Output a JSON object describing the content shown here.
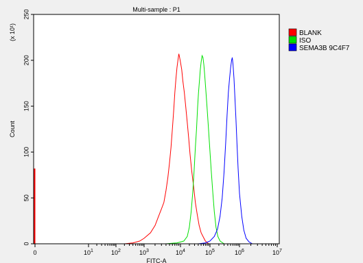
{
  "chart_data": {
    "type": "line",
    "title": "Multi-sample : P1",
    "xlabel": "FITC-A",
    "ylabel": "Count",
    "y_multiplier_label": "(x 10¹)",
    "xscale": "biexponential-log",
    "ylim": [
      0,
      250
    ],
    "yticks": [
      0,
      50,
      100,
      150,
      200,
      250
    ],
    "xticks": [
      {
        "value": 0,
        "base": "0",
        "exp": ""
      },
      {
        "value": 10,
        "base": "10",
        "exp": "1"
      },
      {
        "value": 100,
        "base": "10",
        "exp": "2"
      },
      {
        "value": 1000,
        "base": "10",
        "exp": "3"
      },
      {
        "value": 10000,
        "base": "10",
        "exp": "4"
      },
      {
        "value": 100000,
        "base": "10",
        "exp": "5"
      },
      {
        "value": 1000000,
        "base": "10",
        "exp": "6"
      },
      {
        "value": 10000000,
        "base": "10",
        "exp": "7"
      }
    ],
    "grid": false,
    "legend_position": "right",
    "series": [
      {
        "name": "BLANK",
        "color": "#ff0000",
        "points": [
          [
            200,
            0
          ],
          [
            400,
            1
          ],
          [
            700,
            3
          ],
          [
            1000,
            6
          ],
          [
            1500,
            12
          ],
          [
            2000,
            20
          ],
          [
            2500,
            30
          ],
          [
            3000,
            38
          ],
          [
            3500,
            45
          ],
          [
            4000,
            58
          ],
          [
            4500,
            72
          ],
          [
            5000,
            88
          ],
          [
            5500,
            105
          ],
          [
            6000,
            125
          ],
          [
            6500,
            145
          ],
          [
            7000,
            165
          ],
          [
            7500,
            180
          ],
          [
            8000,
            192
          ],
          [
            8500,
            200
          ],
          [
            9000,
            207
          ],
          [
            9500,
            203
          ],
          [
            10000,
            198
          ],
          [
            11000,
            190
          ],
          [
            12000,
            178
          ],
          [
            13500,
            165
          ],
          [
            15000,
            150
          ],
          [
            17000,
            132
          ],
          [
            19000,
            115
          ],
          [
            21000,
            98
          ],
          [
            24000,
            80
          ],
          [
            28000,
            62
          ],
          [
            32000,
            45
          ],
          [
            37000,
            32
          ],
          [
            43000,
            20
          ],
          [
            50000,
            12
          ],
          [
            60000,
            7
          ],
          [
            70000,
            3
          ],
          [
            90000,
            0
          ]
        ]
      },
      {
        "name": "ISO",
        "color": "#00e000",
        "points": [
          [
            4000,
            0
          ],
          [
            8000,
            1
          ],
          [
            13000,
            3
          ],
          [
            17000,
            8
          ],
          [
            20000,
            18
          ],
          [
            23000,
            35
          ],
          [
            26000,
            55
          ],
          [
            29000,
            80
          ],
          [
            32000,
            105
          ],
          [
            35000,
            125
          ],
          [
            38000,
            148
          ],
          [
            41000,
            165
          ],
          [
            44000,
            178
          ],
          [
            47000,
            190
          ],
          [
            50000,
            198
          ],
          [
            54000,
            205
          ],
          [
            58000,
            203
          ],
          [
            62000,
            195
          ],
          [
            66000,
            185
          ],
          [
            72000,
            168
          ],
          [
            80000,
            148
          ],
          [
            88000,
            128
          ],
          [
            98000,
            105
          ],
          [
            110000,
            80
          ],
          [
            125000,
            55
          ],
          [
            140000,
            35
          ],
          [
            160000,
            18
          ],
          [
            185000,
            8
          ],
          [
            220000,
            3
          ],
          [
            300000,
            0
          ]
        ]
      },
      {
        "name": "SEMA3B 9C4F7",
        "color": "#0000ff",
        "points": [
          [
            40000,
            0
          ],
          [
            70000,
            1
          ],
          [
            100000,
            3
          ],
          [
            140000,
            8
          ],
          [
            180000,
            16
          ],
          [
            220000,
            30
          ],
          [
            260000,
            50
          ],
          [
            300000,
            78
          ],
          [
            340000,
            110
          ],
          [
            380000,
            140
          ],
          [
            420000,
            165
          ],
          [
            460000,
            180
          ],
          [
            500000,
            192
          ],
          [
            540000,
            200
          ],
          [
            570000,
            203
          ],
          [
            600000,
            196
          ],
          [
            650000,
            180
          ],
          [
            700000,
            160
          ],
          [
            760000,
            135
          ],
          [
            820000,
            110
          ],
          [
            900000,
            82
          ],
          [
            1000000,
            55
          ],
          [
            1150000,
            30
          ],
          [
            1300000,
            15
          ],
          [
            1500000,
            6
          ],
          [
            1800000,
            2
          ],
          [
            2200000,
            0
          ]
        ]
      }
    ]
  }
}
